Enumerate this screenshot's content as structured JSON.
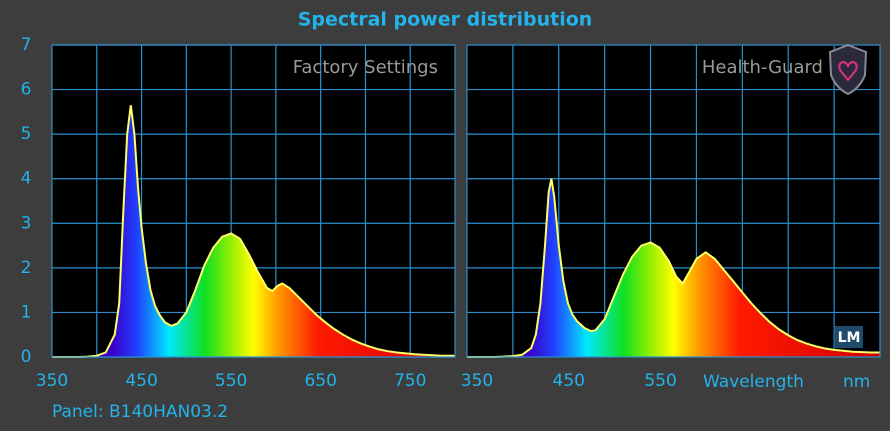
{
  "title": "Spectral power distribution",
  "panel_label": "Panel: B140HAN03.2",
  "logo": "LM",
  "chart_data": [
    {
      "type": "area",
      "subtitle": "Factory Settings",
      "x": [
        350,
        360,
        370,
        380,
        390,
        400,
        410,
        420,
        425,
        430,
        434,
        438,
        442,
        446,
        450,
        455,
        460,
        465,
        470,
        476,
        483,
        490,
        500,
        510,
        520,
        530,
        540,
        550,
        560,
        570,
        580,
        590,
        596,
        602,
        607,
        615,
        625,
        635,
        645,
        655,
        665,
        675,
        685,
        695,
        705,
        715,
        725,
        735,
        745,
        755,
        765,
        775,
        785,
        800
      ],
      "values": [
        0,
        0,
        0,
        0,
        0.01,
        0.03,
        0.1,
        0.5,
        1.2,
        3.4,
        5.0,
        5.65,
        5.0,
        3.8,
        2.9,
        2.1,
        1.5,
        1.15,
        0.95,
        0.78,
        0.7,
        0.75,
        1.0,
        1.5,
        2.05,
        2.45,
        2.7,
        2.77,
        2.65,
        2.3,
        1.9,
        1.55,
        1.48,
        1.6,
        1.65,
        1.55,
        1.35,
        1.15,
        0.95,
        0.78,
        0.63,
        0.5,
        0.39,
        0.3,
        0.23,
        0.17,
        0.13,
        0.1,
        0.08,
        0.06,
        0.05,
        0.04,
        0.03,
        0.03
      ],
      "color": "#ffff66",
      "xlim": [
        350,
        800
      ],
      "ylim": [
        0,
        7
      ],
      "xticks": [
        350,
        450,
        550,
        650,
        750
      ],
      "yticks": [
        0,
        1,
        2,
        3,
        4,
        5,
        6,
        7
      ],
      "x_gridlines": [
        400,
        450,
        500,
        550,
        600,
        650,
        700,
        750
      ],
      "grid": true
    },
    {
      "type": "area",
      "subtitle": "Health-Guard",
      "xlabel": "Wavelength",
      "xunit": "nm",
      "x": [
        350,
        360,
        370,
        380,
        390,
        400,
        410,
        420,
        425,
        430,
        435,
        439,
        442,
        445,
        450,
        455,
        460,
        465,
        470,
        478,
        485,
        490,
        500,
        510,
        520,
        530,
        540,
        550,
        560,
        570,
        578,
        585,
        592,
        600,
        610,
        620,
        630,
        640,
        650,
        660,
        670,
        680,
        690,
        700,
        710,
        720,
        730,
        740,
        750,
        760,
        770,
        780,
        790,
        800
      ],
      "values": [
        0,
        0,
        0,
        0,
        0.01,
        0.02,
        0.05,
        0.2,
        0.5,
        1.2,
        2.5,
        3.7,
        4.0,
        3.6,
        2.5,
        1.7,
        1.2,
        0.95,
        0.8,
        0.65,
        0.58,
        0.6,
        0.85,
        1.35,
        1.85,
        2.25,
        2.5,
        2.57,
        2.45,
        2.15,
        1.8,
        1.65,
        1.9,
        2.2,
        2.35,
        2.2,
        1.95,
        1.7,
        1.45,
        1.2,
        0.98,
        0.78,
        0.62,
        0.49,
        0.38,
        0.3,
        0.24,
        0.19,
        0.16,
        0.14,
        0.12,
        0.11,
        0.1,
        0.1
      ],
      "color": "#ffff66",
      "xlim": [
        350,
        800
      ],
      "ylim": [
        0,
        7
      ],
      "xticks": [
        350,
        450,
        550
      ],
      "y_gridlines": [
        1,
        2,
        3,
        4,
        5,
        6
      ],
      "x_gridlines": [
        400,
        450,
        500,
        550,
        600,
        650,
        700,
        750
      ],
      "grid": true
    }
  ]
}
